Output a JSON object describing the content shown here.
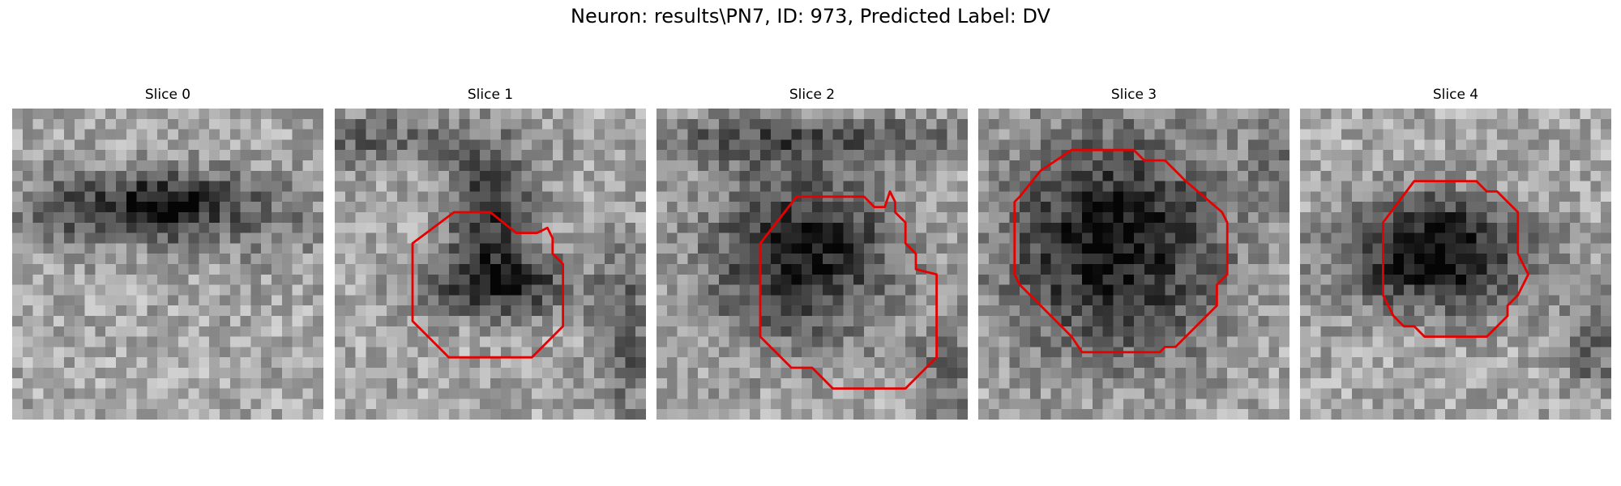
{
  "figure": {
    "title": "Neuron: results\\PN7, ID: 973, Predicted Label: DV"
  },
  "colors": {
    "contour": "#e60000",
    "background": "#ffffff"
  },
  "image_style": "grayscale microscopy patches, pixelated",
  "slices": [
    {
      "title": "Slice 0",
      "has_contour": false
    },
    {
      "title": "Slice 1",
      "has_contour": true
    },
    {
      "title": "Slice 2",
      "has_contour": true
    },
    {
      "title": "Slice 3",
      "has_contour": true
    },
    {
      "title": "Slice 4",
      "has_contour": true
    }
  ]
}
